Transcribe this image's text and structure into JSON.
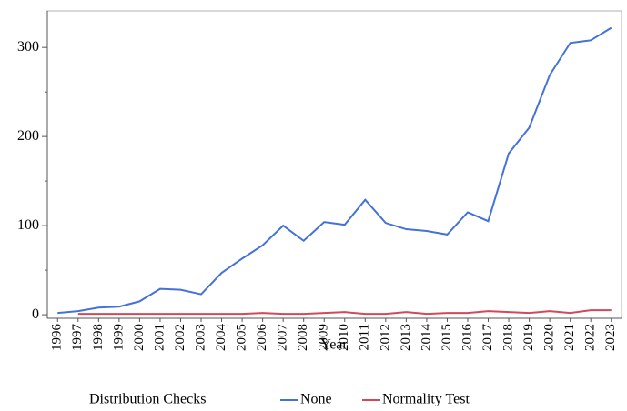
{
  "chart_data": {
    "type": "line",
    "x_label": "Year",
    "legend_title": "Distribution Checks",
    "categories": [
      "1996",
      "1997",
      "1998",
      "1999",
      "2000",
      "2001",
      "2002",
      "2003",
      "2004",
      "2005",
      "2006",
      "2007",
      "2008",
      "2009",
      "2010",
      "2011",
      "2012",
      "2013",
      "2014",
      "2015",
      "2016",
      "2017",
      "2018",
      "2019",
      "2020",
      "2021",
      "2022",
      "2023"
    ],
    "series": [
      {
        "name": "None",
        "color": "#4472d8",
        "values": [
          2,
          4,
          8,
          9,
          15,
          29,
          28,
          23,
          47,
          63,
          78,
          100,
          83,
          104,
          101,
          129,
          103,
          96,
          94,
          90,
          115,
          105,
          181,
          210,
          269,
          305,
          308,
          322
        ]
      },
      {
        "name": "Normality Test",
        "color": "#d04a5a",
        "values": [
          null,
          1,
          1,
          1,
          1,
          1,
          1,
          1,
          1,
          1,
          2,
          1,
          1,
          2,
          3,
          1,
          1,
          3,
          1,
          2,
          2,
          4,
          3,
          2,
          4,
          2,
          5,
          5
        ]
      }
    ],
    "ylim": [
      -4,
      341
    ],
    "yticks": [
      0,
      100,
      200,
      300
    ],
    "yminorticks": [
      50,
      150,
      250
    ],
    "legend": "bottom"
  }
}
